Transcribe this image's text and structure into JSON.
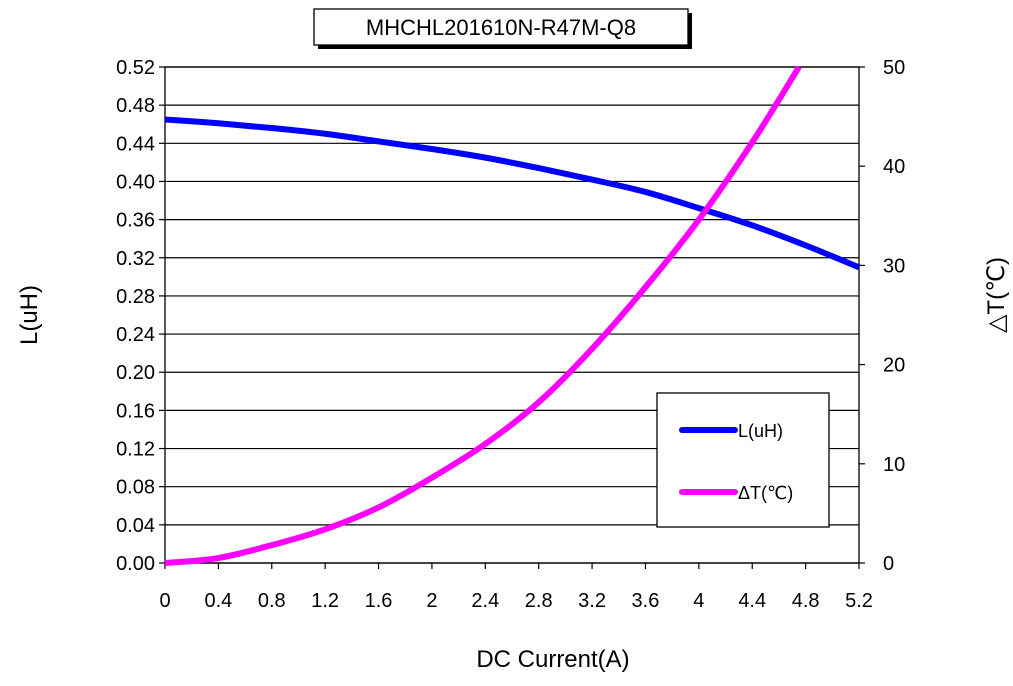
{
  "chart_data": {
    "type": "line",
    "title": "MHCHL201610N-R47M-Q8",
    "xlabel": "DC Current(A)",
    "ylabel_left": "L(uH)",
    "ylabel_right": "△T(℃)",
    "xlim": [
      0,
      5.2
    ],
    "ylim_left": [
      0,
      0.52
    ],
    "ylim_right": [
      0,
      50
    ],
    "x_ticks": [
      "0",
      "0.4",
      "0.8",
      "1.2",
      "1.6",
      "2",
      "2.4",
      "2.8",
      "3.2",
      "3.6",
      "4",
      "4.4",
      "4.8",
      "5.2"
    ],
    "y_left_ticks": [
      "0.00",
      "0.04",
      "0.08",
      "0.12",
      "0.16",
      "0.20",
      "0.24",
      "0.28",
      "0.32",
      "0.36",
      "0.40",
      "0.44",
      "0.48",
      "0.52"
    ],
    "y_right_ticks": [
      "0",
      "10",
      "20",
      "30",
      "40",
      "50"
    ],
    "grid": "horizontal",
    "legend_position": "lower-right",
    "series": [
      {
        "name": "L(uH)",
        "axis": "left",
        "color": "#0000ff",
        "x": [
          0,
          0.4,
          0.8,
          1.2,
          1.6,
          2.0,
          2.4,
          2.8,
          3.2,
          3.6,
          4.0,
          4.4,
          4.8,
          5.2
        ],
        "y": [
          0.465,
          0.461,
          0.456,
          0.45,
          0.442,
          0.434,
          0.425,
          0.414,
          0.402,
          0.389,
          0.372,
          0.354,
          0.333,
          0.31
        ]
      },
      {
        "name": "ΔT(℃)",
        "axis": "right",
        "color": "#ff00ff",
        "x": [
          0,
          0.4,
          0.8,
          1.2,
          1.6,
          2.0,
          2.4,
          2.8,
          3.2,
          3.6,
          4.0,
          4.4,
          4.75
        ],
        "y": [
          0,
          0.5,
          1.8,
          3.4,
          5.6,
          8.6,
          12.0,
          16.2,
          21.6,
          27.8,
          34.6,
          42.4,
          50
        ]
      }
    ]
  }
}
